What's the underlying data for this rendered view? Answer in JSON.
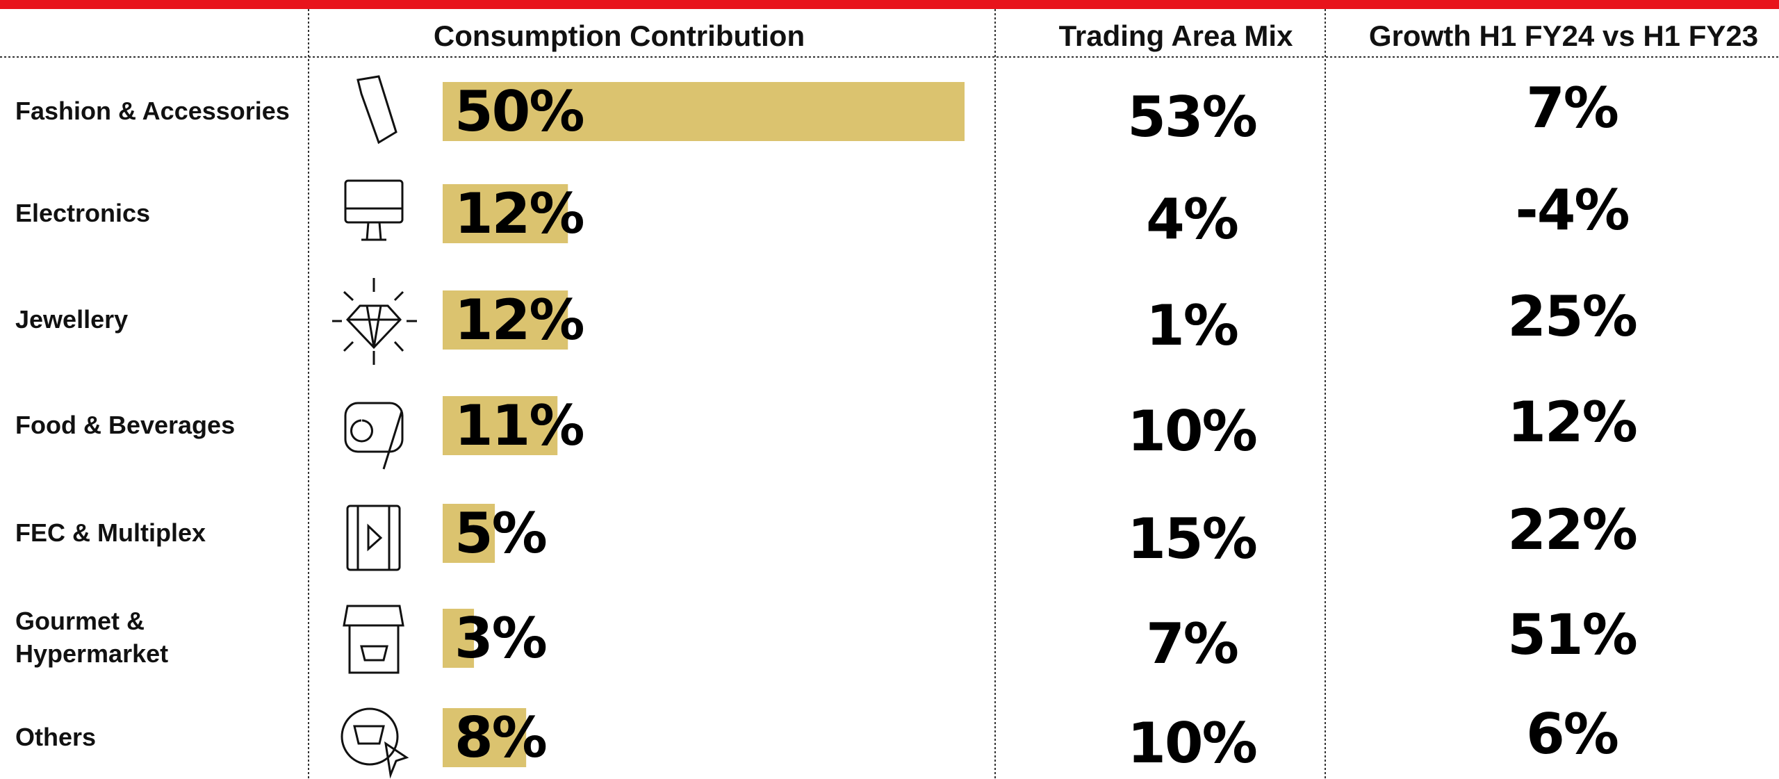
{
  "header": {
    "columns": [
      "Consumption Contribution",
      "Trading Area Mix",
      "Growth H1 FY24 vs H1 FY23"
    ]
  },
  "rows": [
    {
      "category": "Fashion & Accessories",
      "consumption": {
        "value": 50,
        "label": "50%"
      },
      "trading_area": "53%",
      "growth": "7%"
    },
    {
      "category": "Electronics",
      "consumption": {
        "value": 12,
        "label": "12%"
      },
      "trading_area": "4%",
      "growth": "-4%"
    },
    {
      "category": "Jewellery",
      "consumption": {
        "value": 12,
        "label": "12%"
      },
      "trading_area": "1%",
      "growth": "25%"
    },
    {
      "category": "Food & Beverages",
      "consumption": {
        "value": 11,
        "label": "11%"
      },
      "trading_area": "10%",
      "growth": "12%"
    },
    {
      "category": "FEC & Multiplex",
      "consumption": {
        "value": 5,
        "label": "5%"
      },
      "trading_area": "15%",
      "growth": "22%"
    },
    {
      "category": "Gourmet & Hypermarket",
      "consumption": {
        "value": 3,
        "label": "3%"
      },
      "trading_area": "7%",
      "growth": "51%"
    },
    {
      "category": "Others",
      "consumption": {
        "value": 8,
        "label": "8%"
      },
      "trading_area": "10%",
      "growth": "6%"
    }
  ]
}
